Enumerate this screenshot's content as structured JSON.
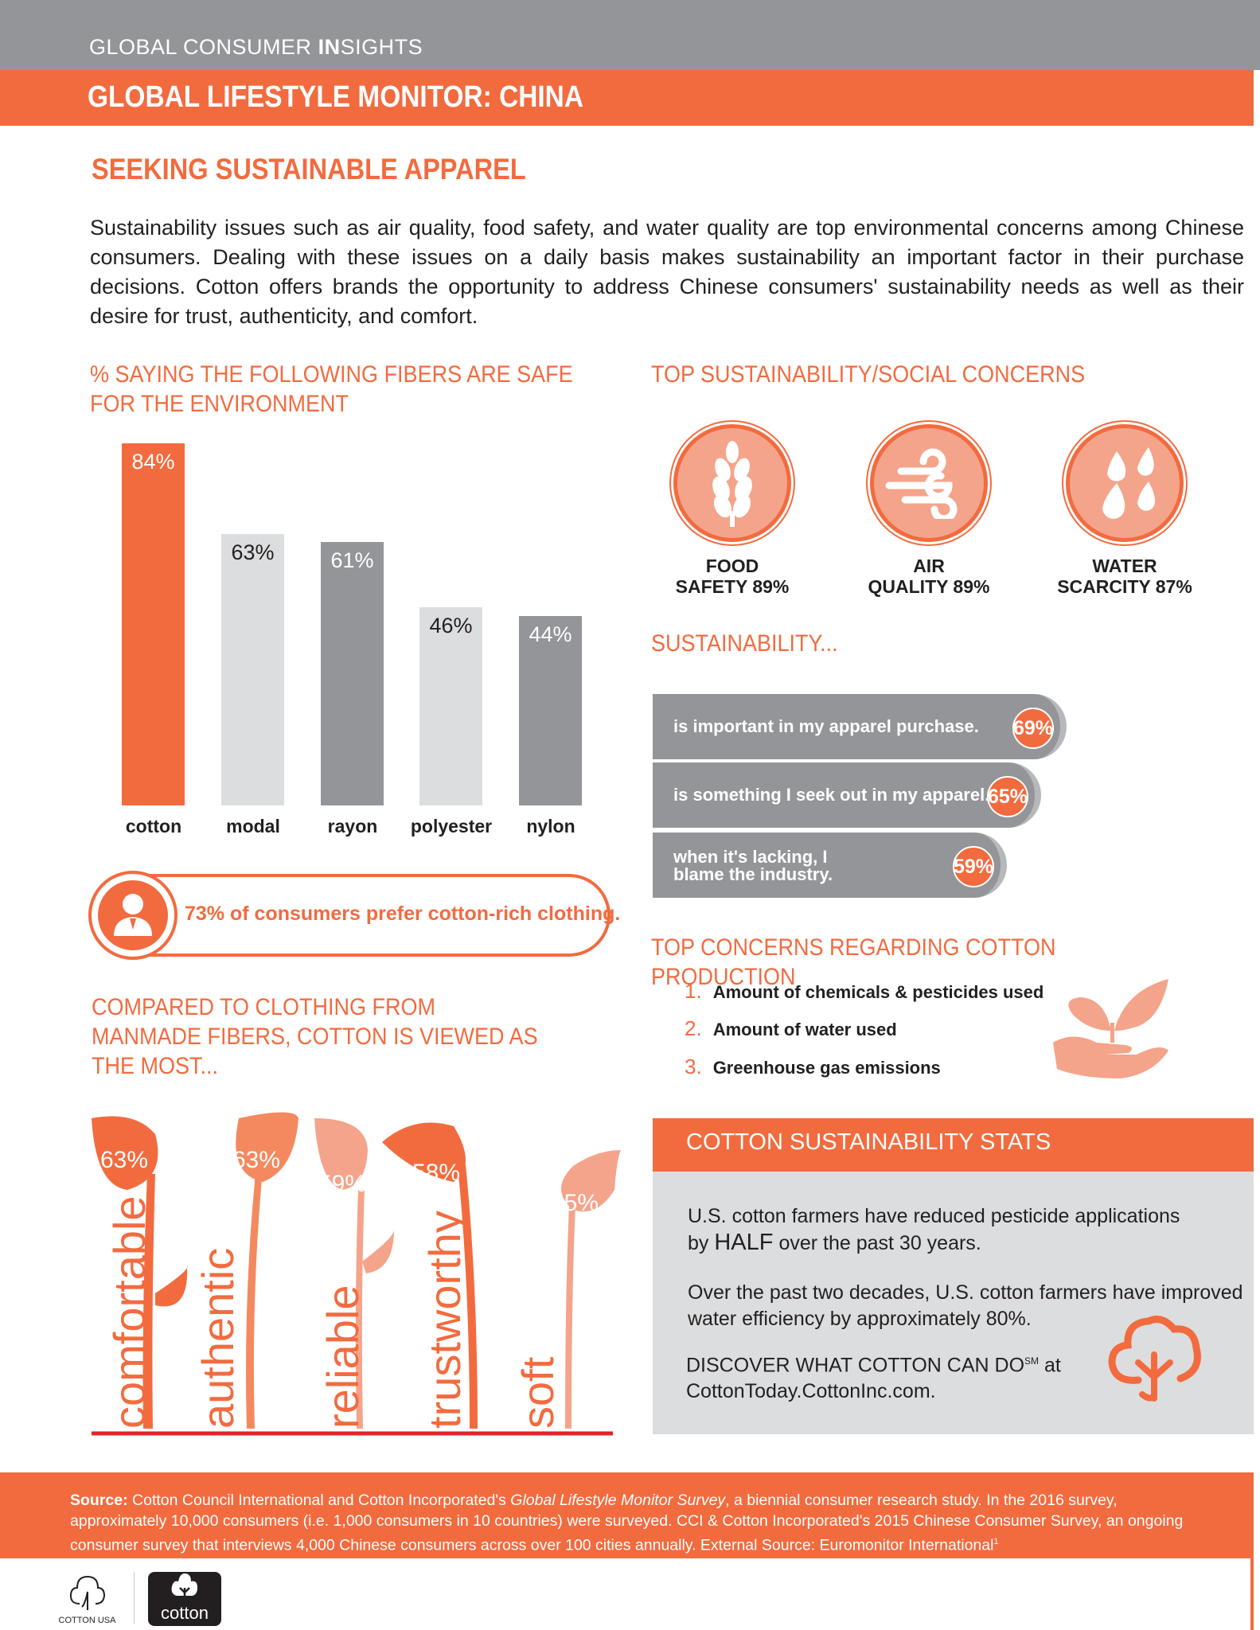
{
  "header": {
    "brand_pre": "GLOBAL CONSUMER ",
    "brand_bold": "IN",
    "brand_post": "SIGHTS",
    "title": "GLOBAL LIFESTYLE MONITOR: CHINA"
  },
  "section_title": "SEEKING SUSTAINABLE APPAREL",
  "intro": "Sustainability issues such as air quality, food safety, and water quality are top environmental concerns among Chinese consumers. Dealing with these issues on a daily basis makes sustainability an important factor in their purchase decisions. Cotton offers brands the opportunity to address Chinese consumers' sustainability needs as well as their desire for trust, authenticity, and comfort.",
  "chart_data": [
    {
      "type": "bar",
      "title": "% SAYING THE FOLLOWING FIBERS ARE SAFE FOR THE ENVIRONMENT",
      "categories": [
        "cotton",
        "modal",
        "rayon",
        "polyester",
        "nylon"
      ],
      "values": [
        84,
        63,
        61,
        46,
        44
      ],
      "labels": [
        "84%",
        "63%",
        "61%",
        "46%",
        "44%"
      ],
      "colors": [
        "#f26b3f",
        "#dcddde",
        "#939598",
        "#dcddde",
        "#939598"
      ],
      "ylim": [
        0,
        100
      ]
    },
    {
      "type": "bar",
      "title": "SUSTAINABILITY...",
      "categories": [
        "is important in my apparel purchase.",
        "is something I seek out in my apparel.",
        "when it's lacking, I blame the industry."
      ],
      "values": [
        69,
        65,
        59
      ],
      "labels": [
        "69%",
        "65%",
        "59%"
      ]
    },
    {
      "type": "bar",
      "title": "COMPARED TO CLOTHING FROM MANMADE FIBERS, COTTON IS VIEWED AS THE MOST...",
      "categories": [
        "comfortable",
        "authentic",
        "reliable",
        "trustworthy",
        "soft"
      ],
      "values": [
        63,
        63,
        59,
        58,
        55
      ],
      "labels": [
        "63%",
        "63%",
        "59%",
        "58%",
        "55%"
      ]
    }
  ],
  "pill": {
    "text": "73% of consumers prefer cotton-rich clothing.",
    "icon": "person-icon"
  },
  "concerns": {
    "title": "TOP SUSTAINABILITY/SOCIAL CONCERNS",
    "items": [
      {
        "l1": "FOOD",
        "l2": "SAFETY 89%",
        "icon": "wheat-icon"
      },
      {
        "l1": "AIR",
        "l2": "QUALITY 89%",
        "icon": "wind-icon"
      },
      {
        "l1": "WATER",
        "l2": "SCARCITY 87%",
        "icon": "water-drops-icon"
      }
    ]
  },
  "cotton_concerns": {
    "title": "TOP CONCERNS REGARDING COTTON PRODUCTION",
    "items": [
      {
        "n": "1.",
        "t": "Amount of chemicals & pesticides used"
      },
      {
        "n": "2.",
        "t": "Amount of water used"
      },
      {
        "n": "3.",
        "t": "Greenhouse gas emissions"
      }
    ]
  },
  "stats": {
    "title": "COTTON SUSTAINABILITY STATS",
    "s1a": "U.S. cotton farmers have reduced pesticide applications by ",
    "s1b": "HALF",
    "s1c": " over the past 30 years.",
    "s2": "Over the past two decades, U.S. cotton farmers have improved water efficiency by approximately 80%.",
    "s3a": "DISCOVER WHAT COTTON CAN DO",
    "s3sm": "SM",
    "s3b": " at",
    "s3c": "CottonToday.CottonInc.com."
  },
  "footer": {
    "src": "Source:",
    "a": " Cotton Council International and Cotton Incorporated's ",
    "i": "Global Lifestyle Monitor Survey",
    "b": ", a biennial consumer research study. In the 2016 survey, approximately 10,000 consumers (i.e. 1,000 consumers in 10 countries) were surveyed. CCI & Cotton Incorporated's 2015 Chinese Consumer Survey, an ongoing consumer survey that interviews 4,000 Chinese consumers across over 100 cities annually. External Source: Euromonitor International",
    "sup": "1"
  },
  "logos": {
    "cotton_usa": "COTTON USA",
    "cotton": "cotton"
  },
  "colors": {
    "accent": "#f26b3f",
    "light_accent": "#f4a48a",
    "gray": "#939598",
    "light_gray": "#dcddde"
  }
}
